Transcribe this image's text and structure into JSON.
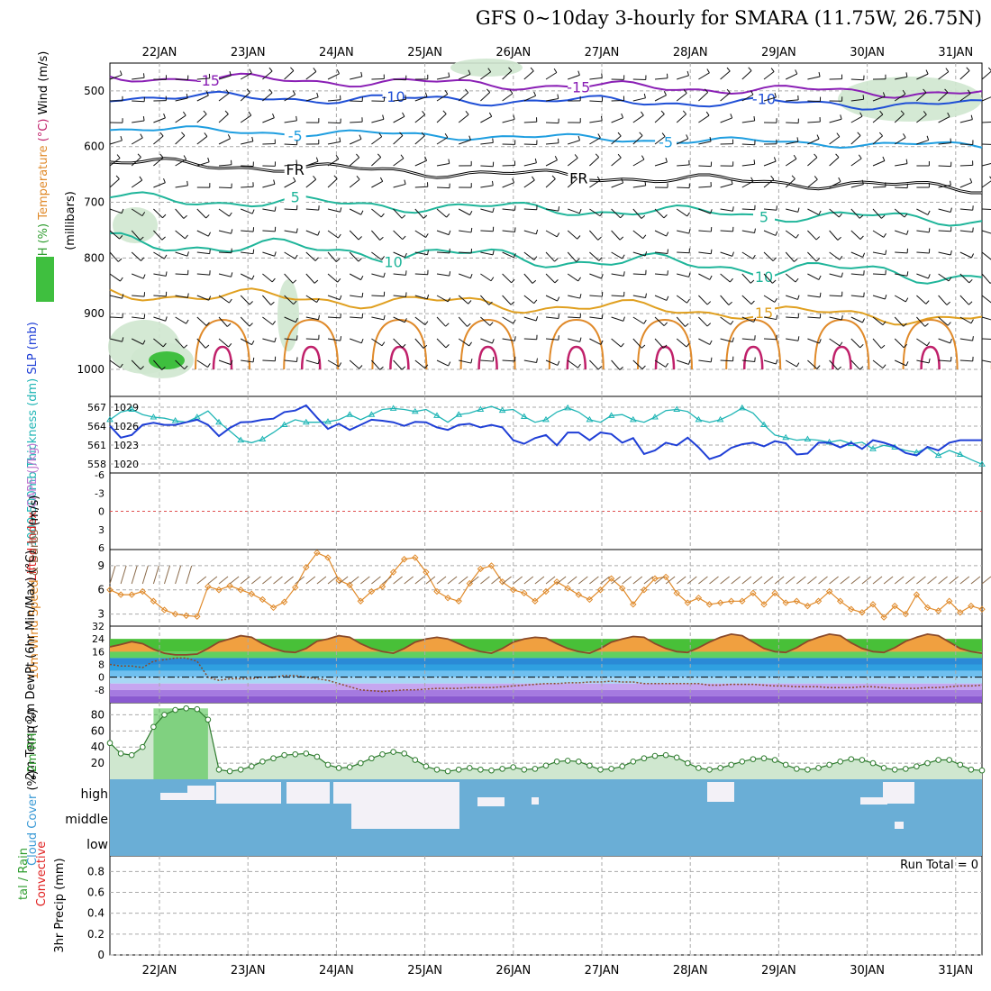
{
  "title": "GFS 0~10day 3-hourly for SMARA (11.75W, 26.75N)",
  "dates": [
    "22JAN",
    "23JAN",
    "24JAN",
    "25JAN",
    "26JAN",
    "27JAN",
    "28JAN",
    "29JAN",
    "30JAN",
    "31JAN"
  ],
  "chart_data": [
    {
      "type": "contour",
      "panel": "upper-air",
      "ylabel_parts": [
        {
          "text": "RH (%)",
          "color": "#2e9c2e"
        },
        {
          "text": "Temperature",
          "color": "#e08a2a"
        },
        {
          "text": "(°C)",
          "color": "#c0206a"
        },
        {
          "text": "Wind",
          "color": "#000000"
        },
        {
          "text": "(m/s)",
          "color": "#000000"
        }
      ],
      "ylabel2": "(millibars)",
      "yticks": [
        "500",
        "600",
        "700",
        "800",
        "900",
        "1000"
      ],
      "ytick_values": [
        500,
        600,
        700,
        800,
        900,
        1000
      ],
      "ylim": [
        450,
        1000
      ],
      "contours": [
        {
          "label": "-15",
          "color": "#8a1fb5",
          "labels_at": [
            1,
            5
          ]
        },
        {
          "label": "-10",
          "color": "#1f4fd6",
          "labels_at": [
            3,
            7
          ]
        },
        {
          "label": "-5",
          "color": "#1f9ee0",
          "labels_at": [
            2,
            6
          ]
        },
        {
          "label": "FR",
          "color": "#000000",
          "labels_at": [
            2,
            5
          ]
        },
        {
          "label": "5",
          "color": "#1fb59a",
          "labels_at": [
            2,
            7
          ]
        },
        {
          "label": "10",
          "color": "#1fb59a",
          "labels_at": [
            3,
            7
          ]
        },
        {
          "label": "15",
          "color": "#e0a020",
          "labels_at": [
            7
          ]
        }
      ]
    },
    {
      "type": "line",
      "panel": "thickness-slp",
      "ylabel_parts": [
        {
          "text": "1000-500mb",
          "color": "#1fb5b5"
        },
        {
          "text": "Thickness (dm)",
          "color": "#1fb5b5"
        },
        {
          "text": "SLP (mb)",
          "color": "#1f3fd6"
        }
      ],
      "yticks_left": [
        "558",
        "561",
        "564",
        "567"
      ],
      "yticks_right": [
        "1020",
        "1023",
        "1026",
        "1029"
      ],
      "series": [
        {
          "name": "1000-500mb Thickness (dm)",
          "color": "#1fb5b5",
          "values": [
            1027.0,
            1028.5,
            1029.0,
            1028.0,
            1027.5,
            1027.3,
            1026.8,
            1026.5,
            1027.5,
            1028.7,
            1026.5,
            1024.8,
            1023.0,
            1022.5,
            1023.2,
            1024.5,
            1026.0,
            1027.0,
            1026.5,
            1026.5,
            1026.6,
            1027.0,
            1028.0,
            1027.0,
            1028.0,
            1029.0,
            1029.2,
            1029.0,
            1028.6,
            1029.0,
            1027.8,
            1026.5,
            1028.0,
            1028.3,
            1029.0,
            1029.6,
            1028.8,
            1029.0,
            1027.6,
            1026.5,
            1027.0,
            1028.5,
            1029.3,
            1028.5,
            1027.0,
            1026.5,
            1027.8,
            1028.0,
            1027.0,
            1026.5,
            1027.5,
            1028.8,
            1029.0,
            1028.6,
            1027.0,
            1026.5,
            1027.0,
            1028.0,
            1029.3,
            1028.3,
            1026.0,
            1024.0,
            1023.5,
            1023.0,
            1023.2,
            1023.0,
            1022.6,
            1023.0,
            1022.3,
            1022.6,
            1021.3,
            1022.0,
            1021.6,
            1021.0,
            1020.6,
            1021.5,
            1020.0,
            1021.0,
            1020.2,
            1019.2,
            1018.3
          ]
        },
        {
          "name": "SLP (mb)",
          "color": "#1f3fd6",
          "values": [
            1025.8,
            1023.5,
            1024.0,
            1026.0,
            1026.4,
            1026.0,
            1026.0,
            1026.5,
            1027.0,
            1026.0,
            1023.8,
            1025.4,
            1026.5,
            1026.6,
            1027.0,
            1027.2,
            1028.5,
            1028.8,
            1029.8,
            1027.4,
            1025.2,
            1026.2,
            1025.0,
            1026.0,
            1027.0,
            1026.8,
            1026.5,
            1025.8,
            1026.6,
            1026.5,
            1025.5,
            1025.0,
            1026.0,
            1026.2,
            1025.5,
            1026.0,
            1025.5,
            1023.0,
            1022.3,
            1023.4,
            1024.0,
            1022.0,
            1024.5,
            1024.5,
            1023.0,
            1024.5,
            1024.2,
            1022.5,
            1023.4,
            1020.3,
            1021.0,
            1022.5,
            1022.0,
            1023.5,
            1021.6,
            1019.3,
            1020.0,
            1021.5,
            1022.2,
            1022.5,
            1021.8,
            1022.8,
            1022.4,
            1020.2,
            1020.4,
            1022.5,
            1022.5,
            1021.6,
            1022.5,
            1021.3,
            1023.0,
            1022.5,
            1021.8,
            1020.5,
            1020.0,
            1021.7,
            1021.0,
            1022.5,
            1023.0,
            1023.0,
            1023.0
          ]
        }
      ]
    },
    {
      "type": "line",
      "panel": "cape-li",
      "ylabel_parts": [
        {
          "text": "Lifted Index",
          "color": "#e02020"
        },
        {
          "text": "CAPE (J/kg)",
          "color": "#c07ad0"
        }
      ],
      "yticks": [
        "-6",
        "-3",
        "0",
        "3",
        "6"
      ],
      "ylim": [
        6,
        -6
      ],
      "series": [
        {
          "name": "Lifted Index",
          "color": "#e02020",
          "values": [
            0
          ]
        }
      ]
    },
    {
      "type": "line",
      "panel": "wind10m",
      "ylabel_parts": [
        {
          "text": "10m Wind",
          "color": "#e08a2a"
        },
        {
          "text": "Speed",
          "color": "#e08a2a"
        },
        {
          "text": "& Barbs",
          "color": "#8a6a4a"
        },
        {
          "text": "(m/s)",
          "color": "#000000"
        }
      ],
      "yticks": [
        "3",
        "6",
        "9"
      ],
      "ylim": [
        1.5,
        11
      ],
      "series": [
        {
          "name": "10m Wind Speed",
          "color": "#e08a2a",
          "values": [
            6,
            5.4,
            5.4,
            5.8,
            4.6,
            3.5,
            3.0,
            2.8,
            2.7,
            6.4,
            6.0,
            6.5,
            6.0,
            5.5,
            4.8,
            3.8,
            4.5,
            6.3,
            8.8,
            10.6,
            10.0,
            7.2,
            6.6,
            4.6,
            5.8,
            6.4,
            8.2,
            9.8,
            10.0,
            8.2,
            5.8,
            5.0,
            4.6,
            6.8,
            8.6,
            9.0,
            7.0,
            6.0,
            5.6,
            4.6,
            5.8,
            7.0,
            6.2,
            5.4,
            4.8,
            6.0,
            7.4,
            6.2,
            4.2,
            6.0,
            7.4,
            7.6,
            5.6,
            4.4,
            5.0,
            4.2,
            4.4,
            4.6,
            4.6,
            5.6,
            4.2,
            5.6,
            4.4,
            4.6,
            4.0,
            4.6,
            5.8,
            4.6,
            3.6,
            3.2,
            4.2,
            2.6,
            4.0,
            3.0,
            5.4,
            3.8,
            3.4,
            4.6,
            3.2,
            4.0,
            3.6
          ]
        }
      ]
    },
    {
      "type": "area",
      "panel": "temp2m",
      "ylabel_parts": [
        {
          "text": "2m Temp",
          "color": "#000000"
        },
        {
          "text": "2m DewPt",
          "color": "#000000"
        },
        {
          "text": "(6hr Min/Max)",
          "color": "#000000"
        },
        {
          "text": "(°C)",
          "color": "#000000"
        }
      ],
      "yticks": [
        "-8",
        "0",
        "8",
        "16",
        "24",
        "32"
      ],
      "ylim": [
        -16,
        32
      ],
      "series": [
        {
          "name": "2m Temp",
          "color": "#8a4a2a",
          "values": [
            19,
            20.5,
            22.3,
            21,
            17.5,
            15,
            14,
            14,
            14.5,
            18,
            22,
            24,
            26,
            25,
            21,
            18,
            16,
            15.5,
            18,
            22.5,
            24,
            26,
            25,
            21,
            18,
            16,
            15,
            18,
            22,
            24,
            25,
            24,
            21,
            18,
            16,
            15,
            18,
            22,
            24,
            25,
            24.5,
            21,
            18,
            16,
            15,
            18,
            22,
            24,
            25.5,
            25,
            21,
            18,
            16,
            15.5,
            18.5,
            22,
            25,
            27,
            26,
            22,
            18,
            16,
            15.5,
            18.5,
            22.5,
            25,
            27,
            26,
            21.5,
            18,
            16,
            15.5,
            18.5,
            22.5,
            25,
            27,
            26,
            22,
            18,
            16,
            15
          ]
        },
        {
          "name": "2m DewPt",
          "color": "#8a4a2a",
          "values": [
            8,
            7,
            7,
            6,
            10,
            11,
            12,
            12,
            10,
            0,
            -2,
            -1,
            -1,
            -1,
            0,
            0,
            1,
            1,
            0,
            -1,
            -2,
            -4,
            -6,
            -8,
            -8.5,
            -9,
            -8.5,
            -8,
            -8,
            -7.5,
            -7,
            -7,
            -7,
            -6.5,
            -6.5,
            -6.5,
            -6,
            -5.5,
            -5,
            -4.5,
            -4,
            -4,
            -3.5,
            -3.5,
            -3,
            -3,
            -2.5,
            -3,
            -3,
            -4,
            -4,
            -4,
            -4,
            -4,
            -4,
            -5,
            -5,
            -4.5,
            -4.5,
            -4.5,
            -5,
            -5.5,
            -5.5,
            -6,
            -6,
            -6,
            -6.5,
            -6.5,
            -6.5,
            -6,
            -6,
            -6.5,
            -7,
            -7,
            -7,
            -6.5,
            -6.5,
            -6,
            -5.5,
            -5.5,
            -5
          ]
        }
      ]
    },
    {
      "type": "area",
      "panel": "rh2m",
      "ylabel_parts": [
        {
          "text": "2m RH",
          "color": "#2e9c2e"
        },
        {
          "text": "(%)",
          "color": "#000000"
        }
      ],
      "yticks": [
        "20",
        "40",
        "60",
        "80"
      ],
      "ylim": [
        0,
        95
      ],
      "series": [
        {
          "name": "2m RH",
          "color": "#2e9c2e",
          "values": [
            45,
            32,
            30,
            40,
            65,
            80,
            86,
            88,
            87,
            74,
            12,
            10,
            12,
            16,
            22,
            26,
            30,
            31,
            32,
            28,
            18,
            14,
            15,
            20,
            26,
            31,
            34,
            32,
            24,
            16,
            12,
            10,
            12,
            14,
            12,
            11,
            13,
            15,
            12,
            13,
            17,
            22,
            23,
            22,
            17,
            12,
            13,
            16,
            22,
            26,
            29,
            30,
            27,
            20,
            14,
            12,
            14,
            18,
            22,
            25,
            26,
            24,
            18,
            13,
            12,
            14,
            18,
            22,
            25,
            24,
            20,
            14,
            12,
            13,
            16,
            20,
            24,
            24,
            18,
            12,
            11
          ]
        }
      ]
    },
    {
      "type": "heatmap",
      "panel": "cloud",
      "ylabel_parts": [
        {
          "text": "Cloud Cover",
          "color": "#3a9ad6"
        },
        {
          "text": "(%)",
          "color": "#000000"
        }
      ],
      "ytick_labels": [
        "high",
        "middle",
        "low"
      ]
    },
    {
      "type": "bar",
      "panel": "precip",
      "ylabel_parts": [
        {
          "text": "Total / Rain",
          "color": "#2e9c2e"
        },
        {
          "text": "Convective",
          "color": "#e02020"
        },
        {
          "text": "3hr Precip (mm)",
          "color": "#000000"
        }
      ],
      "ylabel_visible": [
        "tal / Rain",
        "Convective",
        "3hr Precip (mm)"
      ],
      "yticks": [
        "0",
        "0.2",
        "0.4",
        "0.6",
        "0.8"
      ],
      "ylim": [
        0,
        0.95
      ],
      "annotation": "Run Total = 0",
      "values": [
        0
      ]
    }
  ]
}
